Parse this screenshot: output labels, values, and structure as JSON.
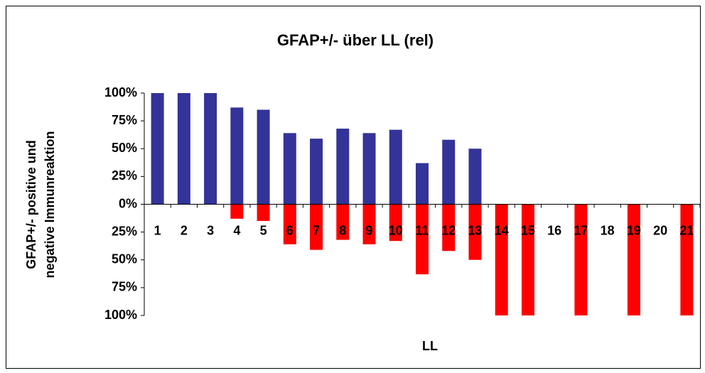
{
  "chart_data": {
    "type": "bar",
    "title": "GFAP+/- über LL (rel)",
    "xlabel": "LL",
    "ylabel": [
      "GFAP+/- positive und",
      "negative Immunreaktion"
    ],
    "categories": [
      "1",
      "2",
      "3",
      "4",
      "5",
      "6",
      "7",
      "8",
      "9",
      "10",
      "11",
      "12",
      "13",
      "14",
      "15",
      "16",
      "17",
      "18",
      "19",
      "20",
      "21"
    ],
    "series": [
      {
        "color": "#333399",
        "values": [
          100,
          100,
          100,
          87,
          85,
          64,
          59,
          68,
          64,
          67,
          37,
          58,
          50,
          0,
          0,
          0,
          0,
          0,
          0,
          0,
          0
        ]
      },
      {
        "color": "#ff0000",
        "values": [
          0,
          0,
          0,
          -13,
          -15,
          -36,
          -41,
          -32,
          -36,
          -33,
          -63,
          -42,
          -50,
          -100,
          -100,
          0,
          -100,
          0,
          -100,
          0,
          -100
        ]
      }
    ],
    "ylim": [
      -100,
      100
    ],
    "yticks": [
      {
        "value": 100,
        "label": "100%"
      },
      {
        "value": 75,
        "label": "75%"
      },
      {
        "value": 50,
        "label": "50%"
      },
      {
        "value": 25,
        "label": "25%"
      },
      {
        "value": 0,
        "label": "0%"
      },
      {
        "value": -25,
        "label": "25%"
      },
      {
        "value": -50,
        "label": "50%"
      },
      {
        "value": -75,
        "label": "75%"
      },
      {
        "value": -100,
        "label": "100%"
      }
    ],
    "grid": false
  }
}
